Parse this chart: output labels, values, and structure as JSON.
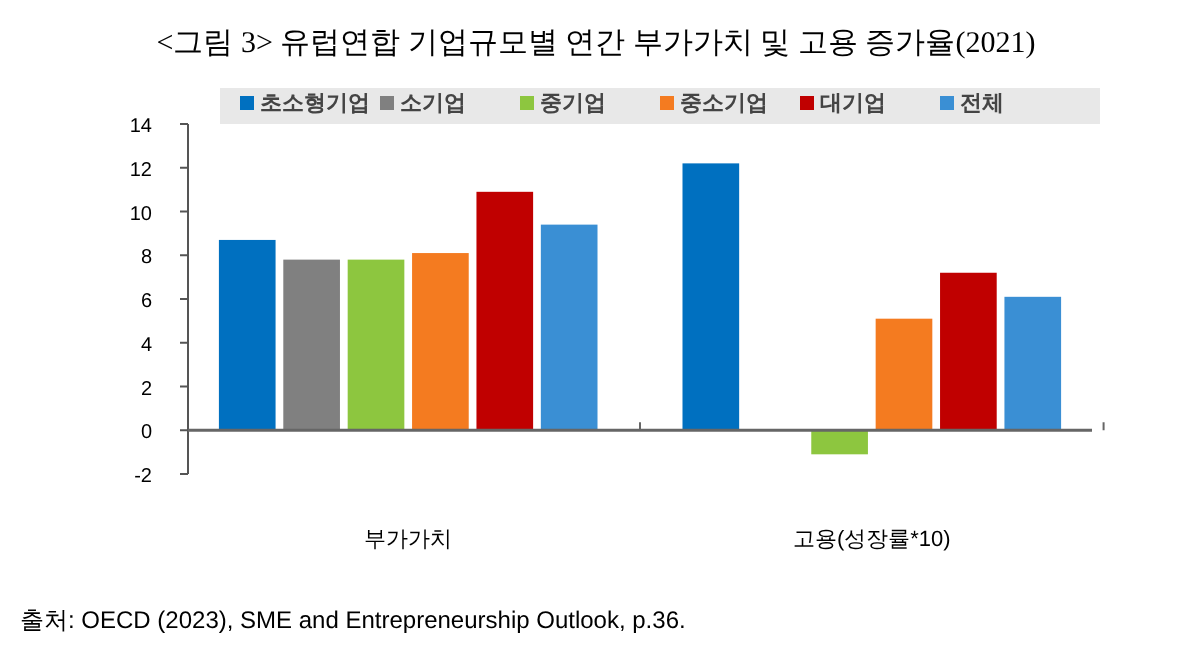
{
  "chart_data": {
    "type": "bar",
    "title": "<그림 3> 유럽연합 기업규모별 연간 부가가치 및 고용 증가율(2021)",
    "categories": [
      "부가가치",
      "고용(성장률*10)"
    ],
    "series": [
      {
        "name": "초소형기업",
        "color": "#0070c0",
        "values": [
          8.7,
          12.2
        ]
      },
      {
        "name": "소기업",
        "color": "#808080",
        "values": [
          7.8,
          null
        ]
      },
      {
        "name": "중기업",
        "color": "#8dc63f",
        "values": [
          7.8,
          -1.1
        ]
      },
      {
        "name": "중소기업",
        "color": "#f47b20",
        "values": [
          8.1,
          5.1
        ]
      },
      {
        "name": "대기업",
        "color": "#c00000",
        "values": [
          10.9,
          7.2
        ]
      },
      {
        "name": "전체",
        "color": "#3a8fd4",
        "values": [
          9.4,
          6.1
        ]
      }
    ],
    "ylim": [
      -2,
      14
    ],
    "yticks": [
      -2,
      0,
      2,
      4,
      6,
      8,
      10,
      12,
      14
    ],
    "legend": "top",
    "annotations": [
      "출처: OECD (2023), SME and Entrepreneurship Outlook, p.36."
    ]
  }
}
